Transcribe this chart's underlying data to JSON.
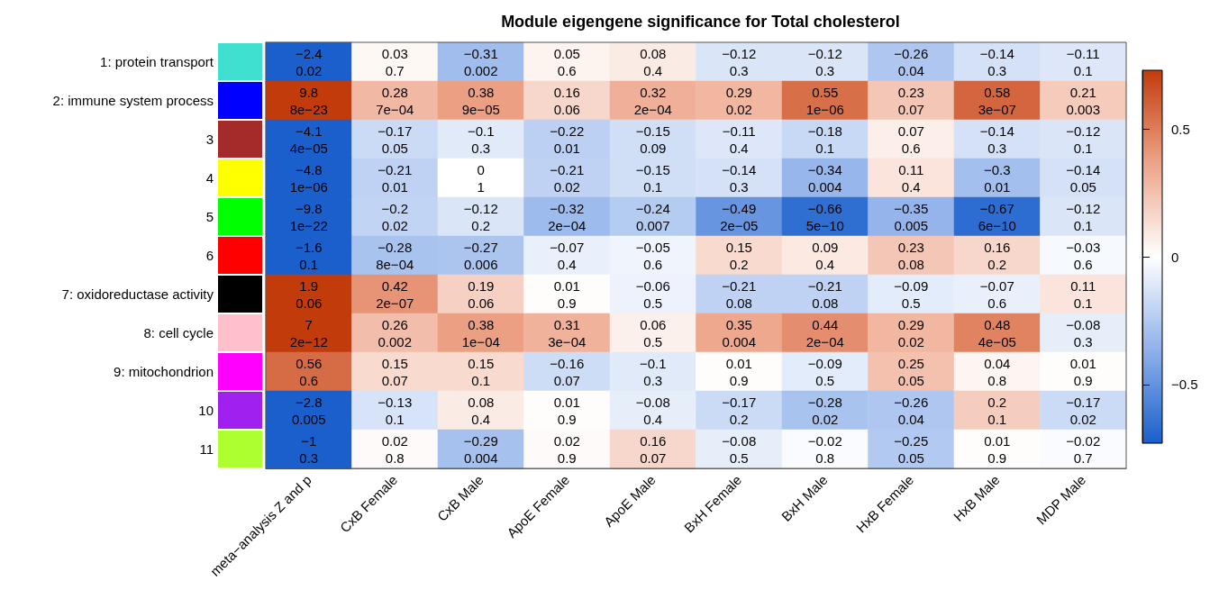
{
  "chart_data": {
    "type": "heatmap",
    "title": "Module eigengene significance for Total cholesterol",
    "categories": [
      "meta−analysis Z and p",
      "CxB Female",
      "CxB Male",
      "ApoE Female",
      "ApoE Male",
      "BxH Female",
      "BxH Male",
      "HxB Female",
      "HxB Male",
      "MDP Male"
    ],
    "y_categories": [
      "1: protein transport",
      "2: immune system process",
      "3",
      "4",
      "5",
      "6",
      "7: oxidoreductase activity",
      "8: cell cycle",
      "9: mitochondrion",
      "10",
      "11"
    ],
    "cells": [
      [
        -2.4,
        0.03,
        -0.31,
        0.05,
        0.08,
        -0.12,
        -0.12,
        -0.26,
        -0.14,
        -0.11
      ],
      [
        9.8,
        0.28,
        0.38,
        0.16,
        0.32,
        0.29,
        0.55,
        0.23,
        0.58,
        0.21
      ],
      [
        -4.1,
        -0.17,
        -0.1,
        -0.22,
        -0.15,
        -0.11,
        -0.18,
        0.07,
        -0.14,
        -0.12
      ],
      [
        -4.8,
        -0.21,
        0,
        -0.21,
        -0.15,
        -0.14,
        -0.34,
        0.11,
        -0.3,
        -0.14
      ],
      [
        -9.8,
        -0.2,
        -0.12,
        -0.32,
        -0.24,
        -0.49,
        -0.66,
        -0.35,
        -0.67,
        -0.12
      ],
      [
        -1.6,
        -0.28,
        -0.27,
        -0.07,
        -0.05,
        0.15,
        0.09,
        0.23,
        0.16,
        -0.03
      ],
      [
        1.9,
        0.42,
        0.19,
        0.01,
        -0.06,
        -0.21,
        -0.21,
        -0.09,
        -0.07,
        0.11
      ],
      [
        7,
        0.26,
        0.38,
        0.31,
        0.06,
        0.35,
        0.44,
        0.29,
        0.48,
        -0.08
      ],
      [
        0.56,
        0.15,
        0.15,
        -0.16,
        -0.1,
        0.01,
        -0.09,
        0.25,
        0.04,
        0.01
      ],
      [
        -2.8,
        -0.13,
        0.08,
        0.01,
        -0.08,
        -0.17,
        -0.28,
        -0.26,
        0.2,
        -0.17
      ],
      [
        -1,
        0.02,
        -0.29,
        0.02,
        0.16,
        -0.08,
        -0.02,
        -0.25,
        0.01,
        -0.02
      ]
    ],
    "cell_labels": [
      [
        "−2.4\n0.02",
        "0.03\n0.7",
        "−0.31\n0.002",
        "0.05\n0.6",
        "0.08\n0.4",
        "−0.12\n0.3",
        "−0.12\n0.3",
        "−0.26\n0.04",
        "−0.14\n0.3",
        "−0.11\n0.1"
      ],
      [
        "9.8\n8e−23",
        "0.28\n7e−04",
        "0.38\n9e−05",
        "0.16\n0.06",
        "0.32\n2e−04",
        "0.29\n0.02",
        "0.55\n1e−06",
        "0.23\n0.07",
        "0.58\n3e−07",
        "0.21\n0.003"
      ],
      [
        "−4.1\n4e−05",
        "−0.17\n0.05",
        "−0.1\n0.3",
        "−0.22\n0.01",
        "−0.15\n0.09",
        "−0.11\n0.4",
        "−0.18\n0.1",
        "0.07\n0.6",
        "−0.14\n0.3",
        "−0.12\n0.1"
      ],
      [
        "−4.8\n1e−06",
        "−0.21\n0.01",
        "0\n1",
        "−0.21\n0.02",
        "−0.15\n0.1",
        "−0.14\n0.3",
        "−0.34\n0.004",
        "0.11\n0.4",
        "−0.3\n0.01",
        "−0.14\n0.05"
      ],
      [
        "−9.8\n1e−22",
        "−0.2\n0.02",
        "−0.12\n0.2",
        "−0.32\n2e−04",
        "−0.24\n0.007",
        "−0.49\n2e−05",
        "−0.66\n5e−10",
        "−0.35\n0.005",
        "−0.67\n6e−10",
        "−0.12\n0.1"
      ],
      [
        "−1.6\n0.1",
        "−0.28\n8e−04",
        "−0.27\n0.006",
        "−0.07\n0.4",
        "−0.05\n0.6",
        "0.15\n0.2",
        "0.09\n0.4",
        "0.23\n0.08",
        "0.16\n0.2",
        "−0.03\n0.6"
      ],
      [
        "1.9\n0.06",
        "0.42\n2e−07",
        "0.19\n0.06",
        "0.01\n0.9",
        "−0.06\n0.5",
        "−0.21\n0.08",
        "−0.21\n0.08",
        "−0.09\n0.5",
        "−0.07\n0.6",
        "0.11\n0.1"
      ],
      [
        "7\n2e−12",
        "0.26\n0.002",
        "0.38\n1e−04",
        "0.31\n3e−04",
        "0.06\n0.5",
        "0.35\n0.004",
        "0.44\n2e−04",
        "0.29\n0.02",
        "0.48\n4e−05",
        "−0.08\n0.3"
      ],
      [
        "0.56\n0.6",
        "0.15\n0.07",
        "0.15\n0.1",
        "−0.16\n0.07",
        "−0.1\n0.3",
        "0.01\n0.9",
        "−0.09\n0.5",
        "0.25\n0.05",
        "0.04\n0.8",
        "0.01\n0.9"
      ],
      [
        "−2.8\n0.005",
        "−0.13\n0.1",
        "0.08\n0.4",
        "0.01\n0.9",
        "−0.08\n0.4",
        "−0.17\n0.2",
        "−0.28\n0.02",
        "−0.26\n0.04",
        "0.2\n0.1",
        "−0.17\n0.02"
      ],
      [
        "−1\n0.3",
        "0.02\n0.8",
        "−0.29\n0.004",
        "0.02\n0.9",
        "0.16\n0.07",
        "−0.08\n0.5",
        "−0.02\n0.8",
        "−0.25\n0.05",
        "0.01\n0.9",
        "−0.02\n0.7"
      ]
    ],
    "clim": [
      -0.73,
      0.73
    ],
    "cticks": [
      {
        "value": -0.5,
        "label": "−0.5"
      },
      0,
      0.5
    ]
  }
}
